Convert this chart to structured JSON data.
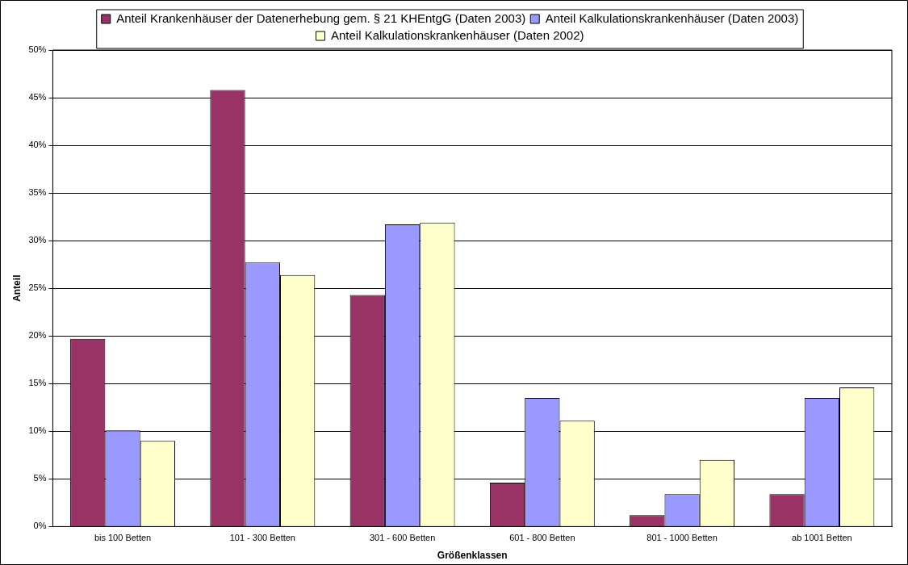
{
  "chart_data": {
    "type": "bar",
    "xlabel": "Größenklassen",
    "ylabel": "Anteil",
    "categories": [
      "bis 100 Betten",
      "101 - 300 Betten",
      "301 - 600 Betten",
      "601 - 800 Betten",
      "801 - 1000 Betten",
      "ab 1001 Betten"
    ],
    "series": [
      {
        "name": "Anteil Krankenhäuser der Datenerhebung gem. § 21 KHEntgG (Daten 2003)",
        "color": "#993366",
        "values": [
          19.7,
          45.8,
          24.3,
          4.6,
          1.2,
          3.4
        ]
      },
      {
        "name": "Anteil Kalkulationskrankenhäuser (Daten 2003)",
        "color": "#9999ff",
        "values": [
          10.1,
          27.7,
          31.7,
          13.5,
          3.4,
          13.5
        ]
      },
      {
        "name": "Anteil Kalkulationskrankenhäuser (Daten 2002)",
        "color": "#ffffcc",
        "values": [
          9.0,
          26.4,
          31.9,
          11.1,
          7.0,
          14.6
        ]
      }
    ],
    "ylim": [
      0,
      50
    ],
    "yticks": [
      {
        "value": 0,
        "label": "0%"
      },
      {
        "value": 5,
        "label": "5%"
      },
      {
        "value": 10,
        "label": "10%"
      },
      {
        "value": 15,
        "label": "15%"
      },
      {
        "value": 20,
        "label": "20%"
      },
      {
        "value": 25,
        "label": "25%"
      },
      {
        "value": 30,
        "label": "30%"
      },
      {
        "value": 35,
        "label": "35%"
      },
      {
        "value": 40,
        "label": "40%"
      },
      {
        "value": 45,
        "label": "45%"
      },
      {
        "value": 50,
        "label": "50%"
      }
    ],
    "grid": "y",
    "legend": "top"
  }
}
